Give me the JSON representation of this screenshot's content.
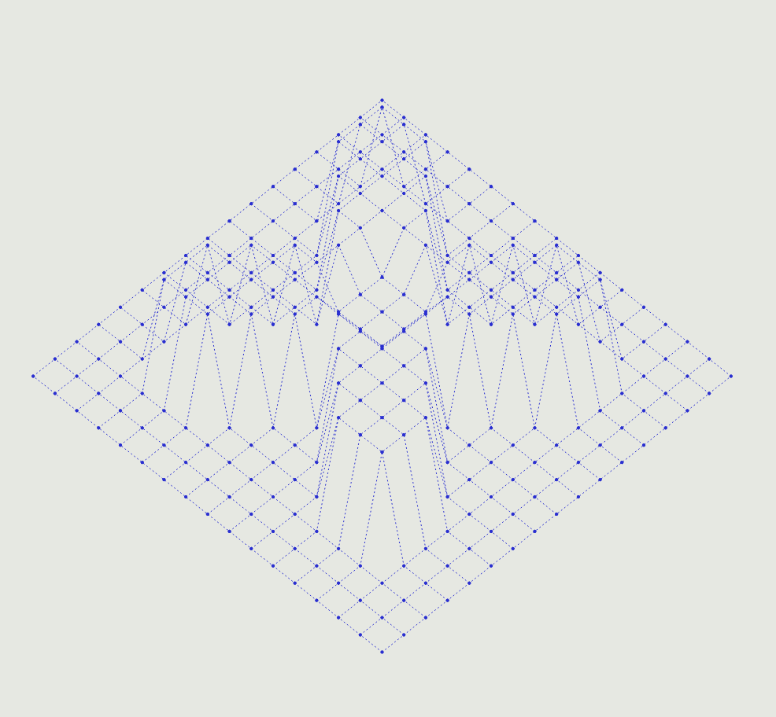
{
  "chart_data": {
    "type": "surface",
    "x": [
      0,
      1,
      2,
      3,
      4,
      5,
      6,
      7,
      8,
      9,
      10,
      11,
      12,
      13,
      14,
      15,
      16
    ],
    "y": [
      0,
      1,
      2,
      3,
      4,
      5,
      6,
      7,
      8,
      9,
      10,
      11,
      12,
      13,
      14,
      15,
      16
    ],
    "xlim": [
      0,
      16
    ],
    "ylim": [
      0,
      16
    ],
    "z": [
      [
        0,
        0,
        0,
        0,
        0,
        0,
        0,
        0,
        0,
        0,
        0,
        0,
        0,
        0,
        0,
        0,
        0
      ],
      [
        0,
        0,
        0,
        0,
        0,
        0,
        0,
        0,
        0,
        0,
        0,
        0,
        0,
        0,
        0,
        0,
        0
      ],
      [
        0,
        0,
        0,
        0,
        0,
        0,
        0,
        0,
        0,
        0,
        0,
        0,
        0,
        0,
        0,
        0,
        0
      ],
      [
        0,
        0,
        0,
        6,
        6,
        6,
        0,
        0,
        0,
        0,
        0,
        6,
        6,
        6,
        0,
        0,
        0
      ],
      [
        0,
        0,
        0,
        6,
        6,
        6,
        6,
        0,
        0,
        0,
        6,
        6,
        6,
        6,
        0,
        0,
        0
      ],
      [
        0,
        0,
        0,
        6,
        6,
        6,
        6,
        6,
        0,
        6,
        6,
        6,
        6,
        6,
        0,
        0,
        0
      ],
      [
        0,
        0,
        0,
        0,
        6,
        6,
        6,
        6,
        6,
        6,
        6,
        6,
        6,
        0,
        0,
        0,
        0
      ],
      [
        0,
        0,
        0,
        0,
        0,
        6,
        6,
        4,
        4,
        4,
        6,
        6,
        0,
        0,
        0,
        0,
        0
      ],
      [
        0,
        0,
        0,
        0,
        0,
        0,
        6,
        4,
        4,
        4,
        6,
        0,
        0,
        0,
        0,
        0,
        0
      ],
      [
        0,
        0,
        0,
        0,
        0,
        6,
        6,
        4,
        4,
        4,
        6,
        6,
        0,
        0,
        0,
        0,
        0
      ],
      [
        0,
        0,
        0,
        0,
        6,
        6,
        6,
        6,
        6,
        6,
        6,
        6,
        6,
        0,
        0,
        0,
        0
      ],
      [
        0,
        0,
        0,
        6,
        6,
        6,
        6,
        6,
        0,
        6,
        6,
        6,
        6,
        6,
        0,
        0,
        0
      ],
      [
        0,
        0,
        0,
        6,
        6,
        6,
        6,
        0,
        0,
        0,
        6,
        6,
        6,
        6,
        0,
        0,
        0
      ],
      [
        0,
        0,
        0,
        6,
        6,
        6,
        0,
        0,
        0,
        0,
        0,
        6,
        6,
        6,
        0,
        0,
        0
      ],
      [
        0,
        0,
        0,
        0,
        0,
        0,
        0,
        0,
        0,
        0,
        0,
        0,
        0,
        0,
        0,
        0,
        0
      ],
      [
        0,
        0,
        0,
        0,
        0,
        0,
        0,
        0,
        0,
        0,
        0,
        0,
        0,
        0,
        0,
        0,
        0
      ],
      [
        0,
        0,
        0,
        0,
        0,
        0,
        0,
        0,
        0,
        0,
        0,
        0,
        0,
        0,
        0,
        0,
        0
      ]
    ],
    "color": "#2a2fd0",
    "line_style": "dotted",
    "marker": "point",
    "tick_labels": false
  }
}
